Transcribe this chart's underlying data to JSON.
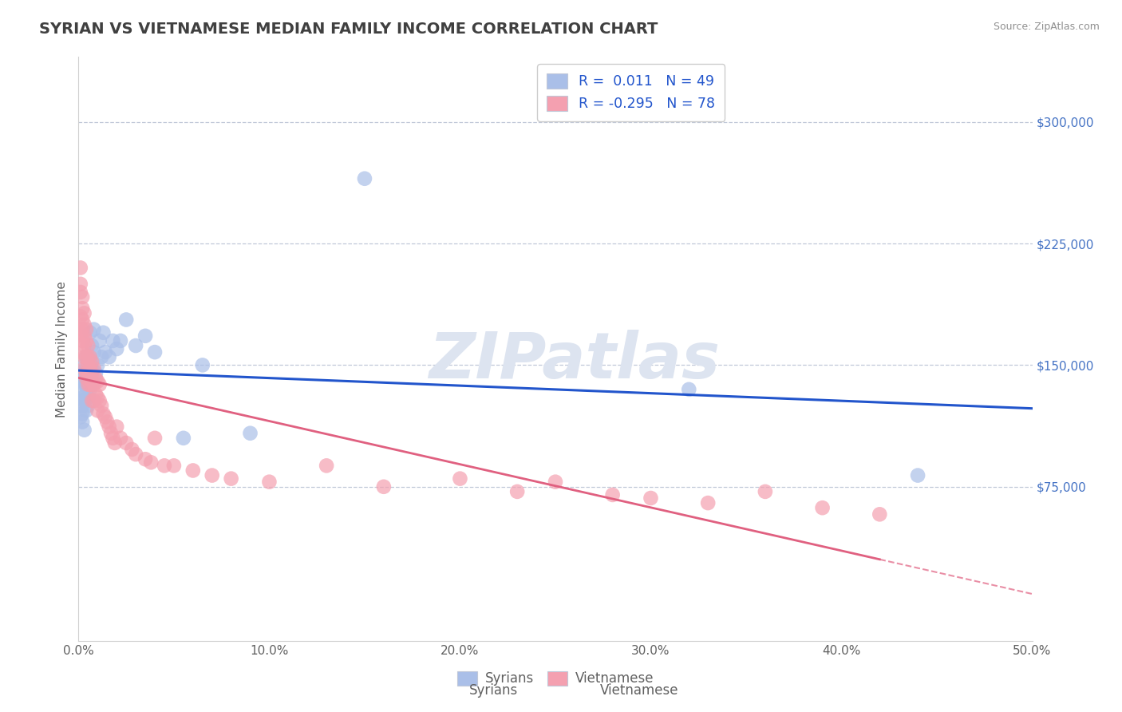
{
  "title": "SYRIAN VS VIETNAMESE MEDIAN FAMILY INCOME CORRELATION CHART",
  "source": "Source: ZipAtlas.com",
  "xlabel": "",
  "ylabel": "Median Family Income",
  "xlim": [
    0.0,
    0.5
  ],
  "ylim": [
    -20000,
    340000
  ],
  "xticks": [
    0.0,
    0.1,
    0.2,
    0.3,
    0.4,
    0.5
  ],
  "xticklabels": [
    "0.0%",
    "10.0%",
    "20.0%",
    "30.0%",
    "40.0%",
    "50.0%"
  ],
  "yticks": [
    75000,
    150000,
    225000,
    300000
  ],
  "yticklabels": [
    "$75,000",
    "$150,000",
    "$225,000",
    "$300,000"
  ],
  "ytick_color": "#4472c4",
  "background_color": "#ffffff",
  "grid_color": "#c0c8d8",
  "title_color": "#404040",
  "title_fontsize": 14,
  "watermark_text": "ZIPatlas",
  "watermark_color": "#dde4f0",
  "syrian_color": "#aabfe8",
  "vietnamese_color": "#f4a0b0",
  "syrian_line_color": "#2255cc",
  "vietnamese_line_color": "#e06080",
  "R_syrian": 0.011,
  "N_syrian": 49,
  "R_vietnamese": -0.295,
  "N_vietnamese": 78,
  "syrian_scatter_x": [
    0.001,
    0.001,
    0.001,
    0.001,
    0.002,
    0.002,
    0.002,
    0.002,
    0.002,
    0.003,
    0.003,
    0.003,
    0.003,
    0.003,
    0.004,
    0.004,
    0.004,
    0.004,
    0.004,
    0.005,
    0.005,
    0.005,
    0.006,
    0.006,
    0.006,
    0.007,
    0.007,
    0.008,
    0.008,
    0.009,
    0.01,
    0.011,
    0.012,
    0.013,
    0.014,
    0.016,
    0.018,
    0.02,
    0.022,
    0.025,
    0.03,
    0.035,
    0.04,
    0.055,
    0.065,
    0.09,
    0.15,
    0.32,
    0.44
  ],
  "syrian_scatter_y": [
    128000,
    118000,
    135000,
    145000,
    120000,
    130000,
    140000,
    125000,
    115000,
    110000,
    138000,
    150000,
    128000,
    142000,
    132000,
    148000,
    122000,
    138000,
    155000,
    130000,
    145000,
    125000,
    135000,
    155000,
    170000,
    148000,
    162000,
    158000,
    172000,
    145000,
    150000,
    165000,
    155000,
    170000,
    158000,
    155000,
    165000,
    160000,
    165000,
    178000,
    162000,
    168000,
    158000,
    105000,
    150000,
    108000,
    265000,
    135000,
    82000
  ],
  "vietnamese_scatter_x": [
    0.001,
    0.001,
    0.001,
    0.001,
    0.001,
    0.002,
    0.002,
    0.002,
    0.002,
    0.002,
    0.002,
    0.003,
    0.003,
    0.003,
    0.003,
    0.003,
    0.003,
    0.004,
    0.004,
    0.004,
    0.004,
    0.004,
    0.005,
    0.005,
    0.005,
    0.005,
    0.005,
    0.006,
    0.006,
    0.006,
    0.006,
    0.007,
    0.007,
    0.007,
    0.007,
    0.008,
    0.008,
    0.008,
    0.009,
    0.009,
    0.01,
    0.01,
    0.01,
    0.011,
    0.011,
    0.012,
    0.013,
    0.014,
    0.015,
    0.016,
    0.017,
    0.018,
    0.019,
    0.02,
    0.022,
    0.025,
    0.028,
    0.03,
    0.035,
    0.038,
    0.04,
    0.045,
    0.05,
    0.06,
    0.07,
    0.08,
    0.1,
    0.13,
    0.16,
    0.2,
    0.23,
    0.25,
    0.28,
    0.3,
    0.33,
    0.36,
    0.39,
    0.42
  ],
  "vietnamese_scatter_y": [
    210000,
    195000,
    180000,
    170000,
    200000,
    185000,
    172000,
    165000,
    192000,
    178000,
    158000,
    168000,
    155000,
    175000,
    162000,
    148000,
    182000,
    155000,
    145000,
    165000,
    172000,
    142000,
    150000,
    162000,
    138000,
    155000,
    145000,
    148000,
    138000,
    155000,
    142000,
    145000,
    138000,
    128000,
    152000,
    138000,
    128000,
    148000,
    132000,
    142000,
    130000,
    140000,
    122000,
    128000,
    138000,
    125000,
    120000,
    118000,
    115000,
    112000,
    108000,
    105000,
    102000,
    112000,
    105000,
    102000,
    98000,
    95000,
    92000,
    90000,
    105000,
    88000,
    88000,
    85000,
    82000,
    80000,
    78000,
    88000,
    75000,
    80000,
    72000,
    78000,
    70000,
    68000,
    65000,
    72000,
    62000,
    58000
  ]
}
